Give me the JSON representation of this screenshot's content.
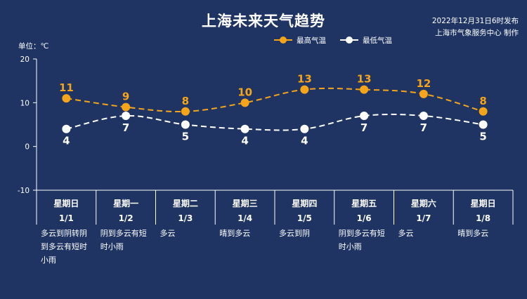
{
  "header": {
    "title": "上海未来天气趋势",
    "issued_time": "2022年12月31日6时发布",
    "issuer": "上海市气象服务中心 制作",
    "unit_label": "单位：℃"
  },
  "legend": {
    "high": "最高气温",
    "low": "最低气温"
  },
  "colors": {
    "background": "#1f3462",
    "high": "#f5a51a",
    "low": "#ffffff",
    "axis": "#ffffff"
  },
  "chart_data": {
    "type": "line",
    "title": "上海未来天气趋势",
    "ylabel": "单位：℃",
    "ylim": [
      -10,
      20
    ],
    "yticks": [
      -10,
      0,
      10,
      20
    ],
    "grid": false,
    "legend_position": "top-right",
    "categories": [
      "星期日 1/1",
      "星期一 1/2",
      "星期二 1/3",
      "星期三 1/4",
      "星期四 1/5",
      "星期五 1/6",
      "星期六 1/7",
      "星期日 1/8"
    ],
    "days": [
      {
        "weekday": "星期日",
        "date": "1/1",
        "condition_lines": [
          "多云到阴转阴",
          "到多云有短时",
          "小雨"
        ]
      },
      {
        "weekday": "星期一",
        "date": "1/2",
        "condition_lines": [
          "阴到多云有短",
          "时小雨"
        ]
      },
      {
        "weekday": "星期二",
        "date": "1/3",
        "condition_lines": [
          "多云"
        ]
      },
      {
        "weekday": "星期三",
        "date": "1/4",
        "condition_lines": [
          "晴到多云"
        ]
      },
      {
        "weekday": "星期四",
        "date": "1/5",
        "condition_lines": [
          "多云到阴"
        ]
      },
      {
        "weekday": "星期五",
        "date": "1/6",
        "condition_lines": [
          "阴到多云有短",
          "时小雨"
        ]
      },
      {
        "weekday": "星期六",
        "date": "1/7",
        "condition_lines": [
          "多云"
        ]
      },
      {
        "weekday": "星期日",
        "date": "1/8",
        "condition_lines": [
          "晴到多云"
        ]
      }
    ],
    "series": [
      {
        "name": "最高气温",
        "values": [
          11,
          9,
          8,
          10,
          13,
          13,
          12,
          8
        ]
      },
      {
        "name": "最低气温",
        "values": [
          4,
          7,
          5,
          4,
          4,
          7,
          7,
          5
        ]
      }
    ]
  }
}
